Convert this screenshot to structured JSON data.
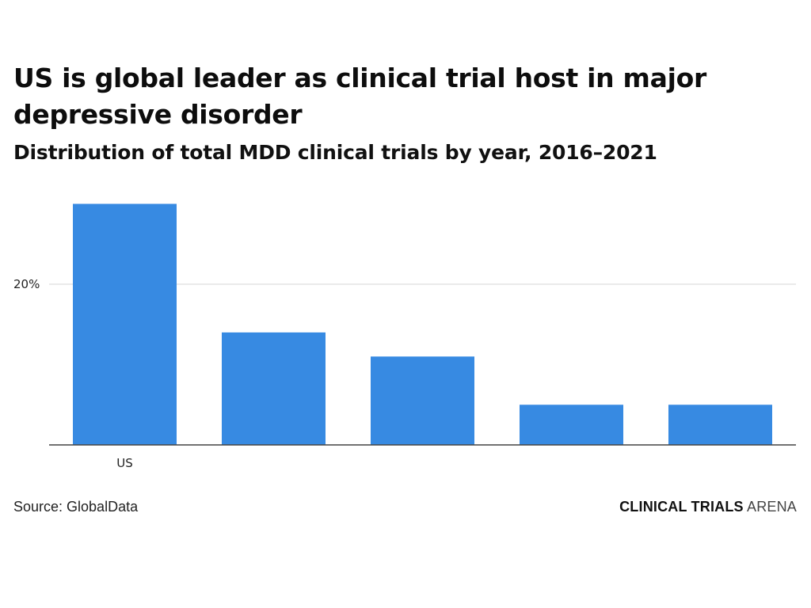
{
  "header": {
    "title": "US is global leader as clinical trial host in major depressive disorder",
    "subtitle": "Distribution of total MDD clinical trials by year, 2016–2021"
  },
  "footer": {
    "source": "Source: GlobalData",
    "brand_strong": "CLINICAL TRIALS",
    "brand_light": "ARENA"
  },
  "colors": {
    "bar": "#378ae2",
    "baseline": "#444444",
    "grid": "#e3e3e3"
  },
  "chart_data": {
    "type": "bar",
    "title": "US is global leader as clinical trial host in major depressive disorder",
    "subtitle": "Distribution of total MDD clinical trials by year, 2016–2021",
    "xlabel": "",
    "ylabel": "",
    "categories": [
      "US",
      "",
      "",
      "",
      ""
    ],
    "values": [
      30,
      14,
      11,
      5,
      5
    ],
    "value_unit": "%",
    "ylim": [
      0,
      30
    ],
    "yticks": [
      20
    ],
    "ytick_labels": [
      "20%"
    ],
    "grid": true,
    "legend": "none",
    "source": "Source: GlobalData"
  }
}
